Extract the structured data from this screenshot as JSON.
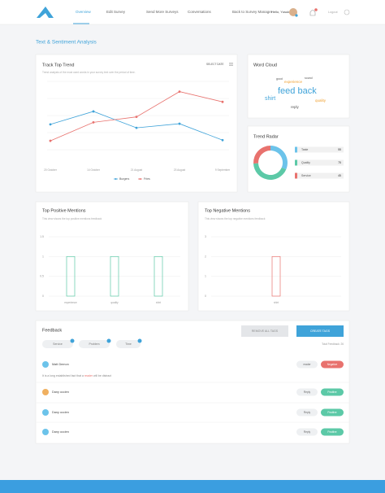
{
  "nav": {
    "items": [
      "Overview",
      "Edit Survey",
      "Send More Surveys",
      "Conversations",
      "Back to Survey Manager"
    ],
    "greeting": "Hello, Yusuk",
    "logout": "Logout"
  },
  "page_title": "Text & Sentiment Analysis",
  "word_cloud": {
    "title": "Word Cloud",
    "words": [
      "good",
      "sound",
      "experience",
      "feed back",
      "shirt",
      "quality",
      "reply"
    ]
  },
  "chart_data": [
    {
      "type": "line",
      "title": "Track Top Trend",
      "subtitle": "Trend analysis of the most used words in your survey text over the period of time.",
      "select_label": "SELECT DATE",
      "categories": [
        "20 October",
        "14 October",
        "21 August",
        "23 August",
        "9 September"
      ],
      "series": [
        {
          "name": "Burgers",
          "color": "#3fa3d9",
          "values": [
            37,
            56,
            32,
            38,
            14
          ]
        },
        {
          "name": "Fries",
          "color": "#e8726e",
          "values": [
            13,
            40,
            48,
            85,
            70
          ]
        }
      ],
      "ylim": [
        0,
        100
      ],
      "yticks": [
        0,
        25,
        50,
        75,
        100
      ],
      "grid": true
    },
    {
      "type": "donut",
      "title": "Trend Radar",
      "categories": [
        "Taste",
        "Quality",
        "Service"
      ],
      "values": [
        55,
        75,
        45
      ],
      "colors": [
        "#6cc3ea",
        "#5cc9a7",
        "#e8726e"
      ]
    },
    {
      "type": "bar",
      "title": "Top Positive Mentions",
      "subtitle": "This view shows the top positive mentions feedback",
      "categories": [
        "experience",
        "quality",
        "shirt"
      ],
      "values": [
        1,
        1,
        1
      ],
      "color": "#5cc9a7",
      "ylim": [
        0,
        1.5
      ],
      "yticks": [
        0,
        0.5,
        1,
        1.5
      ],
      "grid": true
    },
    {
      "type": "bar",
      "title": "Top Negative Mentions",
      "subtitle": "This view shows the top negative mentions feedback",
      "categories": [
        "shirt"
      ],
      "values": [
        2
      ],
      "color": "#e8726e",
      "ylim": [
        0,
        3
      ],
      "yticks": [
        0,
        1,
        2,
        3
      ],
      "grid": true
    }
  ],
  "feedback": {
    "title": "Feedback",
    "filters": [
      "Service",
      "Problem",
      "Time"
    ],
    "buttons": [
      "REMOVE ALL TAGS",
      "CREATE TAGS"
    ],
    "total": "Total Feedback: 26",
    "items": [
      {
        "name": "Matt Demon",
        "text": [
          "It is a long established fact that a ",
          "reader",
          " will be distract"
        ],
        "actions": [
          "reader",
          "Negative"
        ]
      },
      {
        "name": "Dany occien",
        "actions": [
          "Reply",
          "Positive"
        ]
      },
      {
        "name": "Dany occien",
        "actions": [
          "Reply",
          "Positive"
        ]
      },
      {
        "name": "Dany occien",
        "actions": [
          "Reply",
          "Positive"
        ]
      }
    ]
  }
}
